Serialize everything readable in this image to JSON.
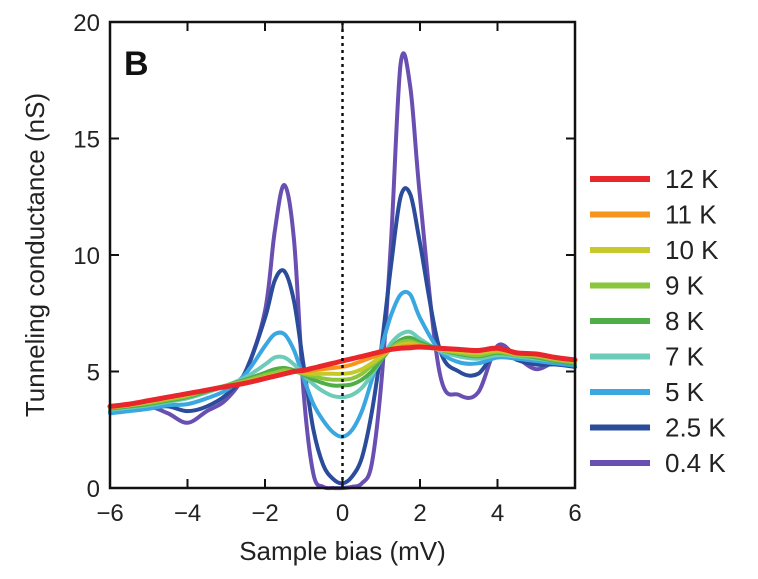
{
  "chart_data": {
    "type": "line",
    "panel_label": "B",
    "xlabel": "Sample bias (mV)",
    "ylabel": "Tunneling conductance (nS)",
    "xlim": [
      -6,
      6
    ],
    "ylim": [
      0,
      20
    ],
    "xticks": [
      -6,
      -4,
      -2,
      0,
      2,
      4,
      6
    ],
    "xtick_labels": [
      "−6",
      "−4",
      "−2",
      "0",
      "2",
      "4",
      "6"
    ],
    "yticks": [
      0,
      5,
      10,
      15,
      20
    ],
    "ytick_labels": [
      "0",
      "5",
      "10",
      "15",
      "20"
    ],
    "grid": false,
    "legend_position": "right",
    "zero_line": {
      "x": 0,
      "style": "dotted"
    },
    "x": [
      -6,
      -5.5,
      -5,
      -4.5,
      -4,
      -3.5,
      -3,
      -2.5,
      -2,
      -1.75,
      -1.5,
      -1.25,
      -1,
      -0.75,
      -0.5,
      -0.25,
      0,
      0.25,
      0.5,
      0.75,
      1,
      1.25,
      1.5,
      1.75,
      2,
      2.5,
      3,
      3.5,
      4,
      4.5,
      5,
      5.5,
      6
    ],
    "series": [
      {
        "name": "12 K",
        "color": "#e8262b",
        "width": 5,
        "values": [
          3.5,
          3.6,
          3.75,
          3.9,
          4.05,
          4.2,
          4.35,
          4.5,
          4.7,
          4.8,
          4.9,
          5.0,
          5.05,
          5.15,
          5.25,
          5.35,
          5.45,
          5.55,
          5.65,
          5.75,
          5.85,
          5.95,
          6.0,
          6.02,
          6.05,
          6.0,
          5.95,
          5.9,
          6.0,
          5.8,
          5.75,
          5.6,
          5.5
        ]
      },
      {
        "name": "11 K",
        "color": "#f7941d",
        "width": 4,
        "values": [
          3.5,
          3.6,
          3.75,
          3.9,
          4.05,
          4.2,
          4.35,
          4.5,
          4.7,
          4.8,
          4.9,
          5.0,
          5.0,
          5.05,
          5.1,
          5.15,
          5.2,
          5.3,
          5.45,
          5.6,
          5.75,
          5.95,
          6.05,
          6.1,
          6.1,
          6.0,
          5.95,
          5.9,
          5.95,
          5.8,
          5.75,
          5.6,
          5.5
        ]
      },
      {
        "name": "10 K",
        "color": "#c6c92a",
        "width": 4,
        "values": [
          3.45,
          3.55,
          3.7,
          3.85,
          4.0,
          4.2,
          4.35,
          4.55,
          4.75,
          4.85,
          4.95,
          5.0,
          4.95,
          4.9,
          4.9,
          4.9,
          4.9,
          4.95,
          5.1,
          5.35,
          5.65,
          5.95,
          6.15,
          6.2,
          6.1,
          5.95,
          5.85,
          5.8,
          5.9,
          5.75,
          5.7,
          5.55,
          5.45
        ]
      },
      {
        "name": "9 K",
        "color": "#8cc63f",
        "width": 4,
        "values": [
          3.45,
          3.55,
          3.65,
          3.8,
          3.95,
          4.2,
          4.4,
          4.6,
          4.85,
          4.95,
          5.05,
          5.0,
          4.9,
          4.8,
          4.7,
          4.65,
          4.65,
          4.7,
          4.9,
          5.25,
          5.6,
          6.0,
          6.25,
          6.3,
          6.15,
          5.95,
          5.8,
          5.7,
          5.85,
          5.7,
          5.65,
          5.5,
          5.4
        ]
      },
      {
        "name": "8 K",
        "color": "#4fae48",
        "width": 4,
        "values": [
          3.4,
          3.5,
          3.6,
          3.75,
          3.9,
          4.15,
          4.4,
          4.65,
          4.95,
          5.1,
          5.15,
          5.05,
          4.85,
          4.65,
          4.5,
          4.4,
          4.4,
          4.45,
          4.65,
          5.0,
          5.5,
          6.0,
          6.35,
          6.45,
          6.25,
          5.95,
          5.75,
          5.65,
          5.8,
          5.7,
          5.6,
          5.45,
          5.35
        ]
      },
      {
        "name": "7 K",
        "color": "#6ccbb9",
        "width": 4,
        "values": [
          3.35,
          3.45,
          3.55,
          3.7,
          3.85,
          4.1,
          4.4,
          4.75,
          5.3,
          5.6,
          5.6,
          5.3,
          4.85,
          4.45,
          4.15,
          3.95,
          3.9,
          4.0,
          4.3,
          4.85,
          5.5,
          6.2,
          6.6,
          6.7,
          6.4,
          5.9,
          5.65,
          5.55,
          5.7,
          5.65,
          5.55,
          5.45,
          5.35
        ]
      },
      {
        "name": "5 K",
        "color": "#3aa7e0",
        "width": 4,
        "values": [
          3.2,
          3.3,
          3.4,
          3.55,
          3.6,
          3.85,
          4.2,
          4.9,
          6.1,
          6.6,
          6.6,
          5.9,
          4.7,
          3.6,
          2.9,
          2.4,
          2.2,
          2.5,
          3.3,
          4.6,
          6.0,
          7.4,
          8.3,
          8.3,
          7.3,
          5.9,
          5.4,
          5.35,
          5.6,
          5.55,
          5.45,
          5.35,
          5.25
        ]
      },
      {
        "name": "2.5 K",
        "color": "#2b4b9b",
        "width": 4,
        "values": [
          3.25,
          3.35,
          3.45,
          3.5,
          3.3,
          3.5,
          4.0,
          5.0,
          7.3,
          8.9,
          9.3,
          8.0,
          5.2,
          2.5,
          1.0,
          0.4,
          0.2,
          0.5,
          1.3,
          3.2,
          6.0,
          9.5,
          12.5,
          12.6,
          10.5,
          6.0,
          5.0,
          4.9,
          5.9,
          5.5,
          5.3,
          5.3,
          5.2
        ]
      },
      {
        "name": "0.4 K",
        "color": "#6a4fb3",
        "width": 4,
        "values": [
          3.3,
          3.4,
          3.5,
          3.2,
          2.8,
          3.3,
          3.8,
          5.0,
          7.6,
          11.0,
          13.0,
          10.6,
          4.0,
          0.6,
          0.05,
          0.0,
          0.0,
          0.05,
          0.2,
          1.0,
          4.5,
          10.5,
          18.2,
          17.2,
          12.5,
          5.0,
          4.0,
          4.1,
          6.1,
          5.6,
          5.1,
          5.4,
          5.2
        ]
      }
    ],
    "legend": [
      {
        "label": "12 K",
        "color": "#e8262b"
      },
      {
        "label": "11 K",
        "color": "#f7941d"
      },
      {
        "label": "10 K",
        "color": "#c6c92a"
      },
      {
        "label": "9 K",
        "color": "#8cc63f"
      },
      {
        "label": "8 K",
        "color": "#4fae48"
      },
      {
        "label": "7 K",
        "color": "#6ccbb9"
      },
      {
        "label": "5 K",
        "color": "#3aa7e0"
      },
      {
        "label": "2.5 K",
        "color": "#2b4b9b"
      },
      {
        "label": "0.4 K",
        "color": "#6a4fb3"
      }
    ]
  }
}
